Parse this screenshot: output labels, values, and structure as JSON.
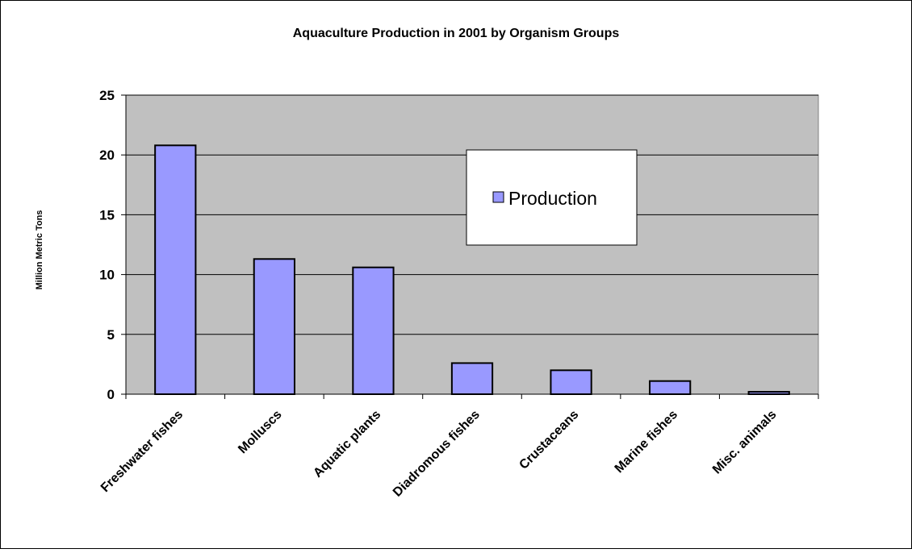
{
  "chart_data": {
    "type": "bar",
    "title": "Aquaculture Production in 2001 by Organism Groups",
    "xlabel": "",
    "ylabel": "Million Metric Tons",
    "categories": [
      "Freshwater fishes",
      "Molluscs",
      "Aquatic plants",
      "Diadromous fishes",
      "Crustaceans",
      "Marine fishes",
      "Misc. animals"
    ],
    "series": [
      {
        "name": "Production",
        "values": [
          20.8,
          11.3,
          10.6,
          2.6,
          2.0,
          1.1,
          0.2
        ]
      }
    ],
    "ylim": [
      0,
      25
    ],
    "yticks": [
      0,
      5,
      10,
      15,
      20,
      25
    ],
    "grid": true,
    "legend_position": "right-center",
    "colors": {
      "plot_background": "#c0c0c0",
      "bar_fill": "#9999ff",
      "bar_stroke": "#000000",
      "gridline": "#000000"
    }
  }
}
